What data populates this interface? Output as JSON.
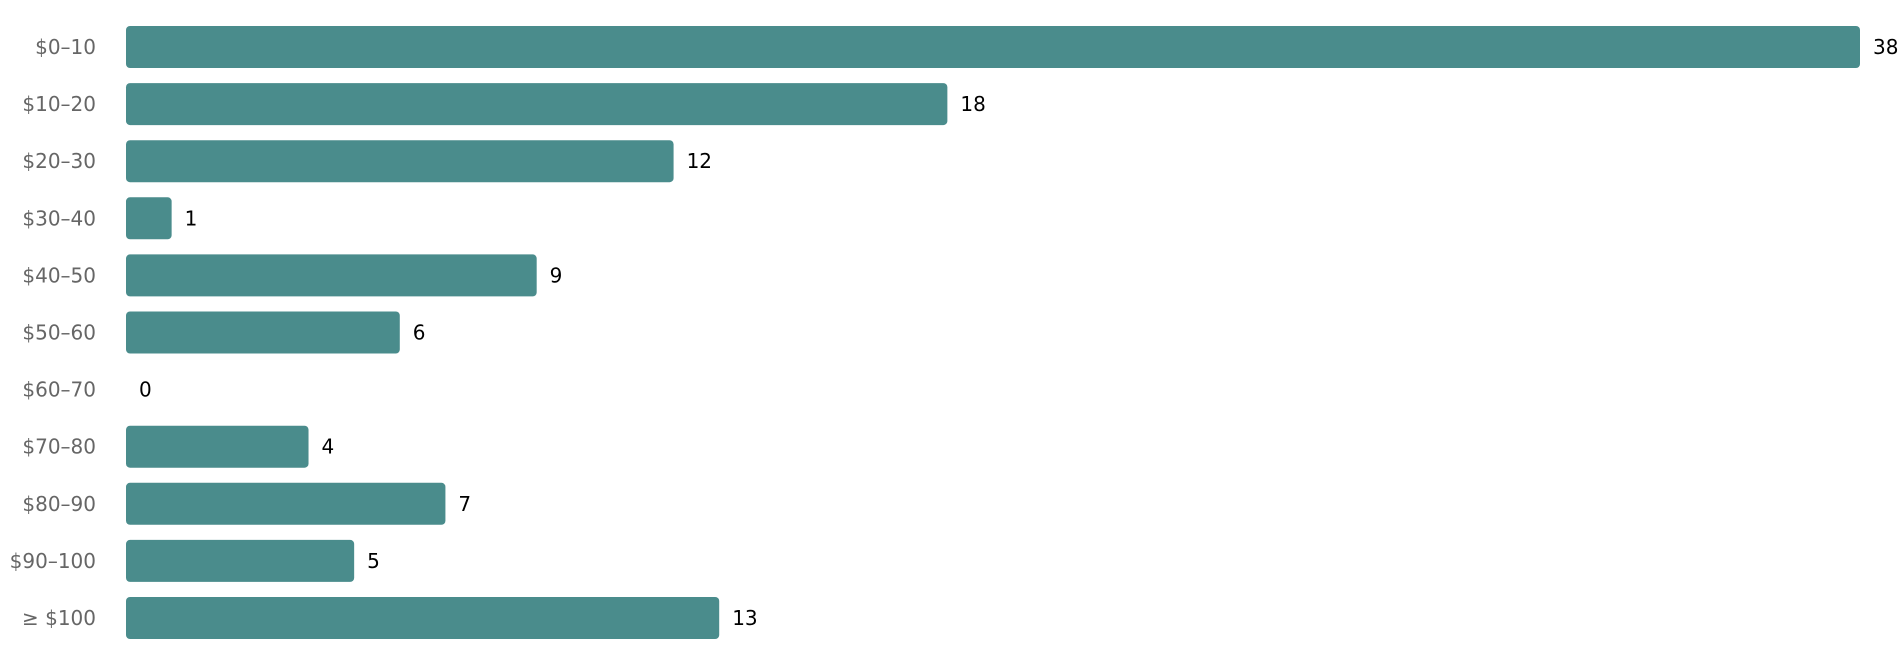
{
  "chart_data": {
    "type": "bar",
    "orientation": "horizontal",
    "title": "",
    "xlabel": "",
    "ylabel": "",
    "categories": [
      "$0–10",
      "$10–20",
      "$20–30",
      "$30–40",
      "$40–50",
      "$50–60",
      "$60–70",
      "$70–80",
      "$80–90",
      "$90–100",
      "≥ $100"
    ],
    "values": [
      38,
      18,
      12,
      1,
      9,
      6,
      0,
      4,
      7,
      5,
      13
    ],
    "xlim": [
      0,
      38
    ],
    "grid": false,
    "data_labels": true,
    "colors": {
      "bar": "#4a8c8c",
      "category_label": "#666666",
      "value_label": "#000000"
    }
  }
}
